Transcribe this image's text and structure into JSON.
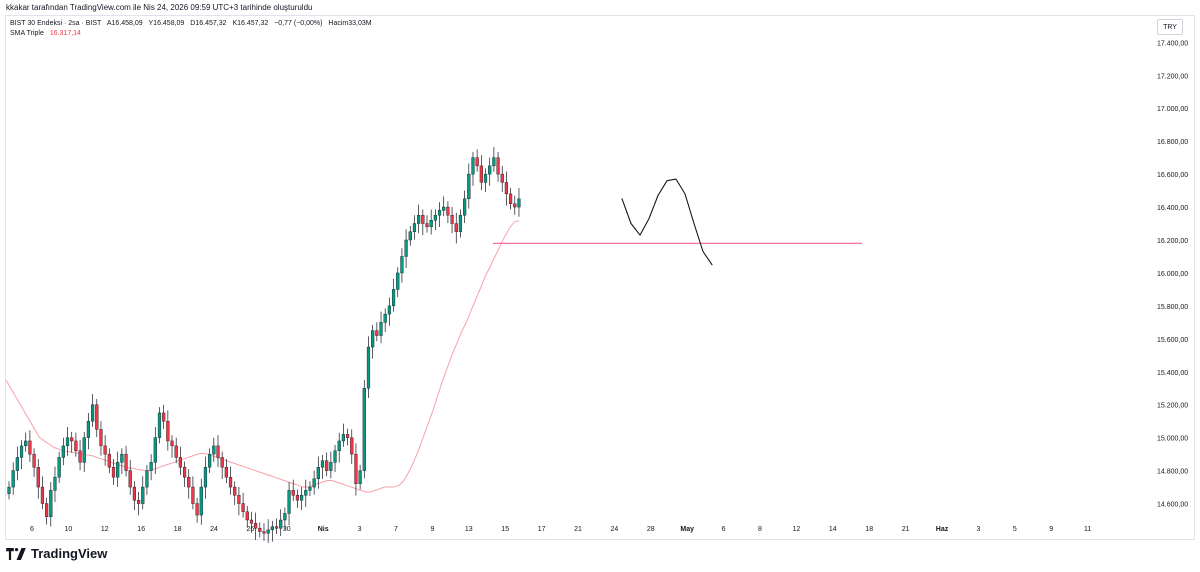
{
  "caption": "kkakar tarafından TradingView.com ile Nis 24, 2026 09:59 UTC+3 tarihinde oluşturuldu",
  "legend": {
    "symbol": "BIST 30 Endeksi · 2sa · BIST",
    "open": "A16.458,09",
    "high": "Y16.458,09",
    "low": "D16.457,32",
    "close": "K16.457,32",
    "change": "−0,77 (−0,00%)",
    "volume": "Hacim33,03M",
    "sma_label": "SMA Triple",
    "sma_value": "16.317,14"
  },
  "currency": "TRY",
  "brand": "TradingView",
  "chart_data": {
    "type": "candlestick",
    "title": "",
    "xlabel": "",
    "ylabel": "",
    "ylim": [
      14500,
      17560
    ],
    "y_ticks": [
      "17.400,00",
      "17.200,00",
      "17.000,00",
      "16.800,00",
      "16.600,00",
      "16.400,00",
      "16.200,00",
      "16.000,00",
      "15.800,00",
      "15.600,00",
      "15.400,00",
      "15.200,00",
      "15.000,00",
      "14.800,00",
      "14.600,00"
    ],
    "y_tick_values": [
      17400,
      17200,
      17000,
      16800,
      16600,
      16400,
      16200,
      16000,
      15800,
      15600,
      15400,
      15200,
      15000,
      14800,
      14600
    ],
    "x_tick_labels": [
      "6",
      "10",
      "12",
      "16",
      "18",
      "24",
      "26",
      "30",
      "Nis",
      "3",
      "7",
      "9",
      "13",
      "15",
      "17",
      "21",
      "24",
      "28",
      "May",
      "6",
      "8",
      "12",
      "14",
      "18",
      "21",
      "Haz",
      "3",
      "5",
      "9",
      "11"
    ],
    "x_tick_bold": [
      "Nis",
      "May",
      "Haz"
    ],
    "candle_closes": [
      14700,
      14800,
      14880,
      14950,
      14980,
      14900,
      14820,
      14700,
      14600,
      14520,
      14680,
      14760,
      14880,
      14950,
      15000,
      14980,
      14920,
      14850,
      15000,
      15100,
      15200,
      15050,
      14950,
      14900,
      14820,
      14760,
      14850,
      14900,
      14800,
      14700,
      14620,
      14600,
      14700,
      14800,
      14850,
      15000,
      15150,
      15100,
      14980,
      14950,
      14880,
      14820,
      14760,
      14700,
      14600,
      14530,
      14700,
      14820,
      14900,
      14950,
      14880,
      14820,
      14760,
      14700,
      14650,
      14600,
      14550,
      14500,
      14480,
      14450,
      14430,
      14420,
      14440,
      14460,
      14450,
      14500,
      14540,
      14680,
      14650,
      14620,
      14650,
      14680,
      14700,
      14750,
      14820,
      14860,
      14800,
      14850,
      14920,
      14980,
      15020,
      15000,
      14900,
      14720,
      14800,
      15300,
      15550,
      15650,
      15620,
      15700,
      15750,
      15800,
      15900,
      16000,
      16100,
      16200,
      16250,
      16300,
      16350,
      16300,
      16280,
      16320,
      16350,
      16380,
      16400,
      16350,
      16300,
      16250,
      16350,
      16450,
      16600,
      16700,
      16650,
      16550,
      16600,
      16650,
      16700,
      16600,
      16550,
      16480,
      16420,
      16400,
      16450
    ],
    "sma_values": [
      15350,
      15300,
      15250,
      15200,
      15150,
      15100,
      15050,
      15000,
      14980,
      14960,
      14940,
      14930,
      14920,
      14915,
      14910,
      14905,
      14900,
      14895,
      14890,
      14880,
      14870,
      14860,
      14850,
      14840,
      14830,
      14820,
      14815,
      14810,
      14805,
      14800,
      14800,
      14810,
      14820,
      14830,
      14840,
      14850,
      14860,
      14870,
      14880,
      14890,
      14900,
      14905,
      14900,
      14890,
      14880,
      14870,
      14860,
      14850,
      14840,
      14830,
      14820,
      14810,
      14800,
      14790,
      14780,
      14770,
      14760,
      14750,
      14740,
      14730,
      14720,
      14710,
      14700,
      14700,
      14710,
      14720,
      14730,
      14740,
      14740,
      14730,
      14720,
      14710,
      14700,
      14690,
      14680,
      14670,
      14670,
      14680,
      14690,
      14700,
      14700,
      14700,
      14710,
      14740,
      14790,
      14850,
      14920,
      15000,
      15080,
      15160,
      15250,
      15340,
      15420,
      15500,
      15570,
      15640,
      15700,
      15770,
      15840,
      15910,
      15980,
      16040,
      16100,
      16160,
      16220,
      16270,
      16310,
      16317
    ],
    "horizontal_line": {
      "value": 16180,
      "color": "#f06292"
    },
    "projection_path": [
      16450,
      16300,
      16230,
      16330,
      16470,
      16560,
      16570,
      16480,
      16300,
      16130,
      16050
    ],
    "colors": {
      "up": "#089981",
      "down": "#f23645",
      "sma": "#f7a1a8",
      "projection": "#131722"
    }
  }
}
